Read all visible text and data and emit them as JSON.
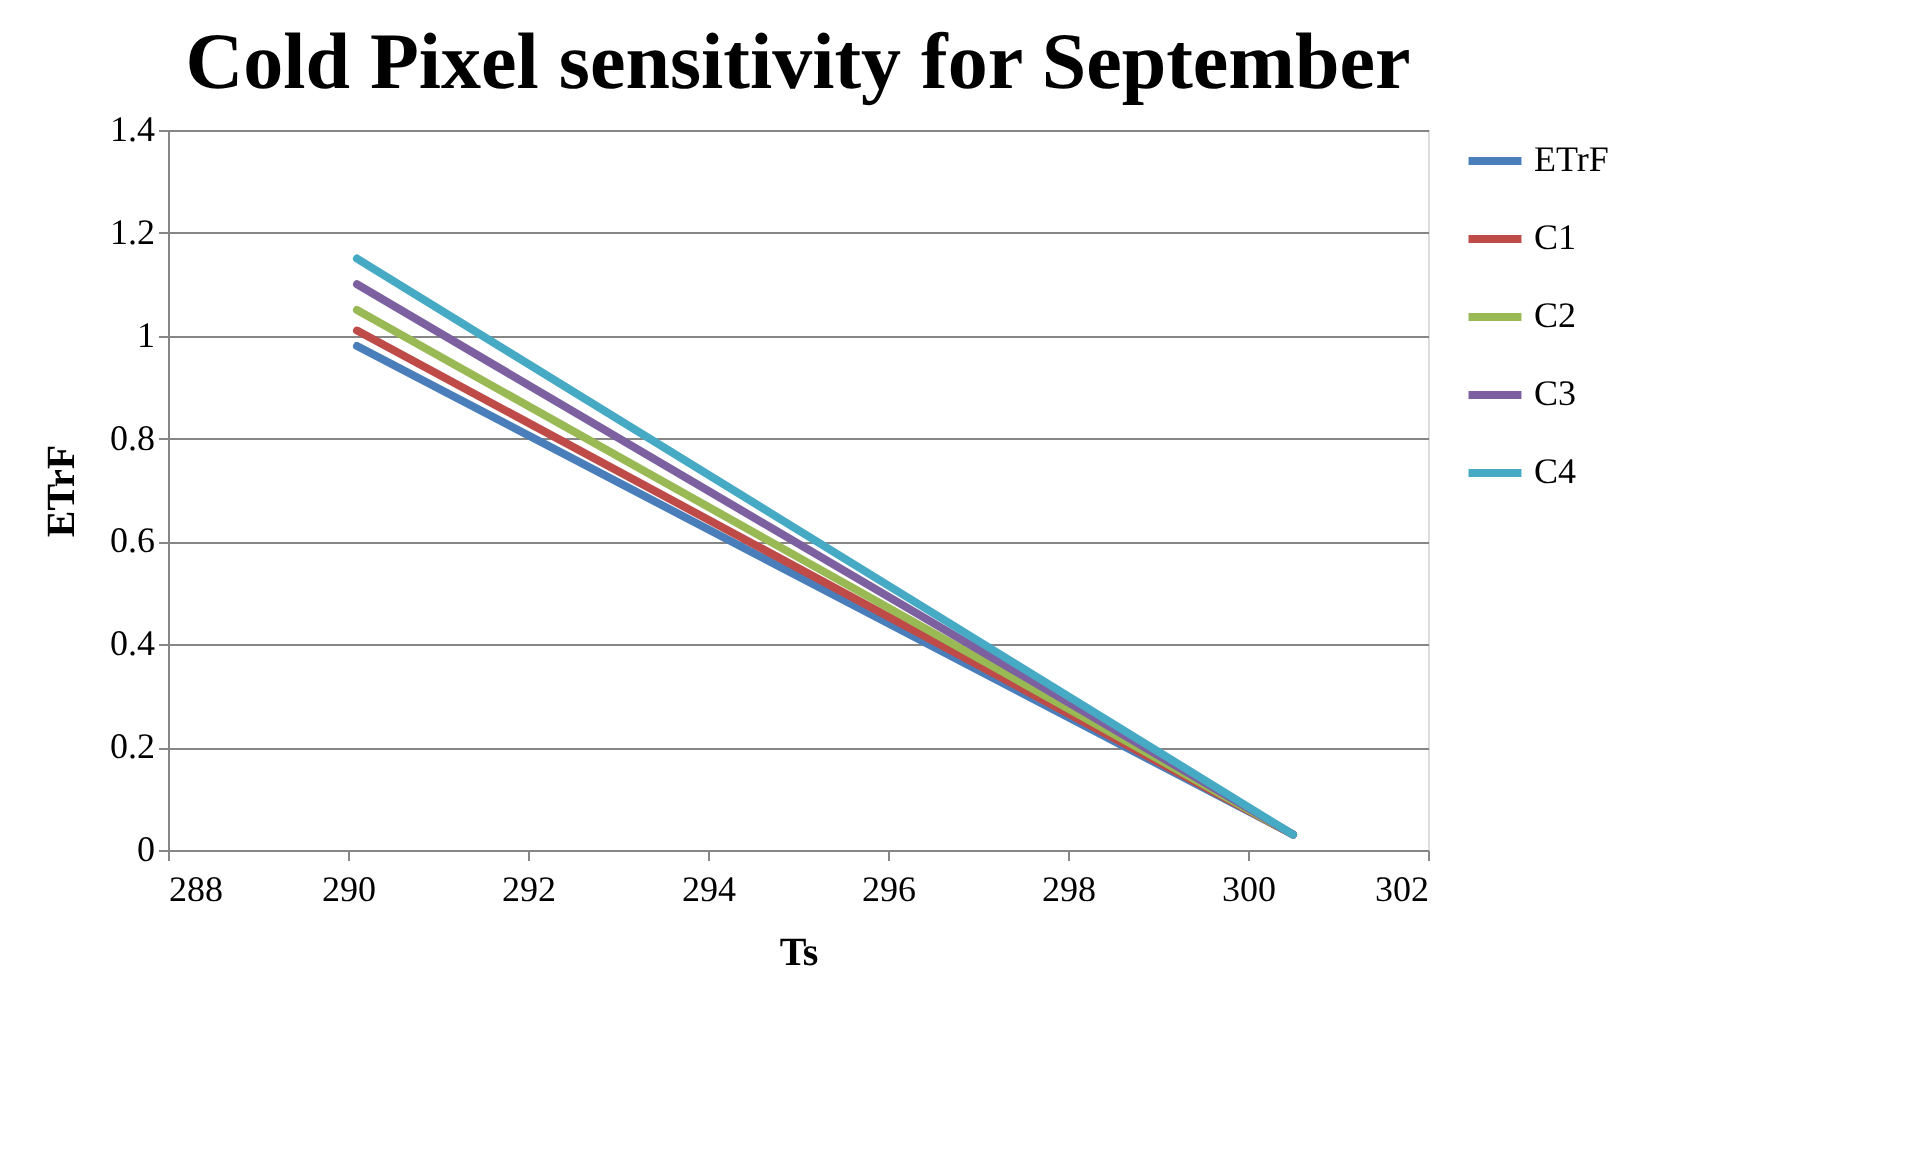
{
  "chart_data": {
    "type": "line",
    "title": "Cold Pixel sensitivity for September",
    "xlabel": "Ts",
    "ylabel": "ETrF",
    "x": [
      290.1,
      300.5
    ],
    "series": [
      {
        "name": "ETrF",
        "color": "#4a7ebb",
        "values": [
          0.98,
          0.03
        ]
      },
      {
        "name": "C1",
        "color": "#be4b48",
        "values": [
          1.01,
          0.03
        ]
      },
      {
        "name": "C2",
        "color": "#98b954",
        "values": [
          1.05,
          0.03
        ]
      },
      {
        "name": "C3",
        "color": "#7d60a0",
        "values": [
          1.1,
          0.03
        ]
      },
      {
        "name": "C4",
        "color": "#46aac5",
        "values": [
          1.15,
          0.03
        ]
      }
    ],
    "xlim": [
      288,
      302
    ],
    "xticks": [
      288,
      290,
      292,
      294,
      296,
      298,
      300,
      302
    ],
    "ylim": [
      0,
      1.4
    ],
    "yticks": [
      0,
      0.2,
      0.4,
      0.6,
      0.8,
      1,
      1.2,
      1.4
    ],
    "grid": "y",
    "legend": "right",
    "marker": "none",
    "line_style": "solid"
  }
}
